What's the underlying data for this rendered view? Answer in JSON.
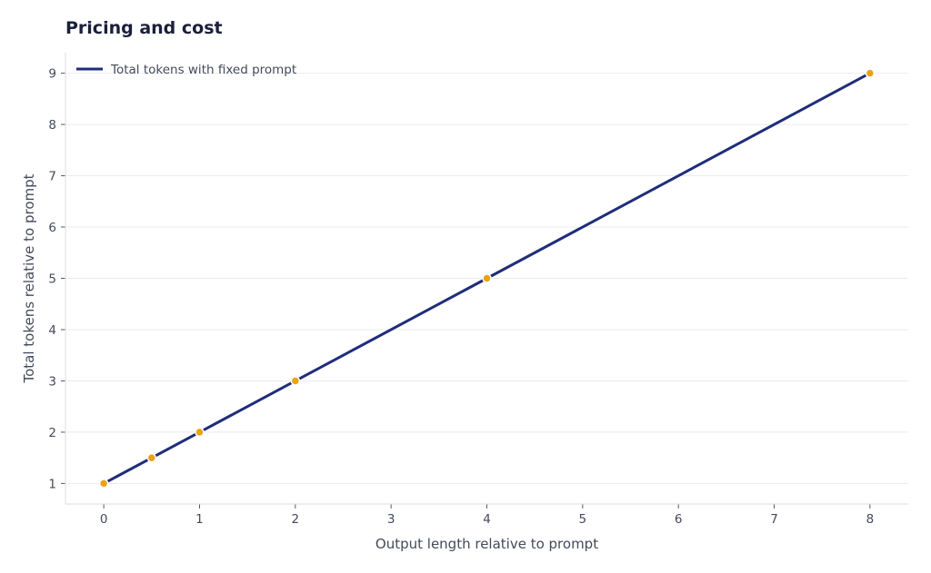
{
  "chart_data": {
    "type": "line",
    "title": "Pricing and cost",
    "xlabel": "Output length relative to prompt",
    "ylabel": "Total tokens relative to prompt",
    "x_ticks": [
      0,
      1,
      2,
      3,
      4,
      5,
      6,
      7,
      8
    ],
    "y_ticks": [
      1,
      2,
      3,
      4,
      5,
      6,
      7,
      8,
      9
    ],
    "xlim": [
      -0.4,
      8.4
    ],
    "ylim": [
      0.6,
      9.4
    ],
    "grid": "horizontal",
    "legend_position": "top-left",
    "series": [
      {
        "name": "Total tokens with fixed prompt",
        "line_color": "#1f2d7a",
        "marker_color": "#e8a317",
        "x": [
          0,
          0.5,
          1,
          2,
          4,
          8
        ],
        "y": [
          1,
          1.5,
          2,
          3,
          5,
          9
        ]
      }
    ]
  }
}
